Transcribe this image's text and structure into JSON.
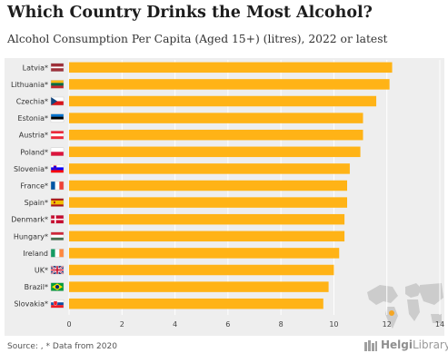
{
  "title": "Which Country Drinks the Most Alcohol?",
  "subtitle": "Alcohol Consumption Per Capita (Aged 15+) (litres), 2022 or latest",
  "source": "Source:  , * Data from 2020",
  "logo": {
    "text": "HelgiLibrary",
    "text_a": "Helgi",
    "text_b": "Library"
  },
  "colors": {
    "bar": "#ffb316",
    "panel": "#eeeeee",
    "grid": "#ffffff",
    "map": "#cccccc",
    "map_highlight": "#f5a623"
  },
  "chart_data": {
    "type": "bar",
    "orientation": "horizontal",
    "title": "Which Country Drinks the Most Alcohol?",
    "subtitle": "Alcohol Consumption Per Capita (Aged 15+) (litres), 2022 or latest",
    "xlabel": "",
    "ylabel": "",
    "xlim": [
      0,
      14
    ],
    "xticks": [
      0,
      2,
      4,
      6,
      8,
      10,
      12,
      14
    ],
    "grid": true,
    "categories": [
      "Latvia*",
      "Lithuania*",
      "Czechia*",
      "Estonia*",
      "Austria*",
      "Poland*",
      "Slovenia*",
      "France*",
      "Spain*",
      "Denmark*",
      "Hungary*",
      "Ireland",
      "UK*",
      "Brazil*",
      "Slovakia*"
    ],
    "flags": [
      "latvia",
      "lithuania",
      "czechia",
      "estonia",
      "austria",
      "poland",
      "slovenia",
      "france",
      "spain",
      "denmark",
      "hungary",
      "ireland",
      "uk",
      "brazil",
      "slovakia"
    ],
    "values": [
      12.2,
      12.1,
      11.6,
      11.1,
      11.1,
      11.0,
      10.6,
      10.5,
      10.5,
      10.4,
      10.4,
      10.2,
      10.0,
      9.8,
      9.6
    ]
  }
}
